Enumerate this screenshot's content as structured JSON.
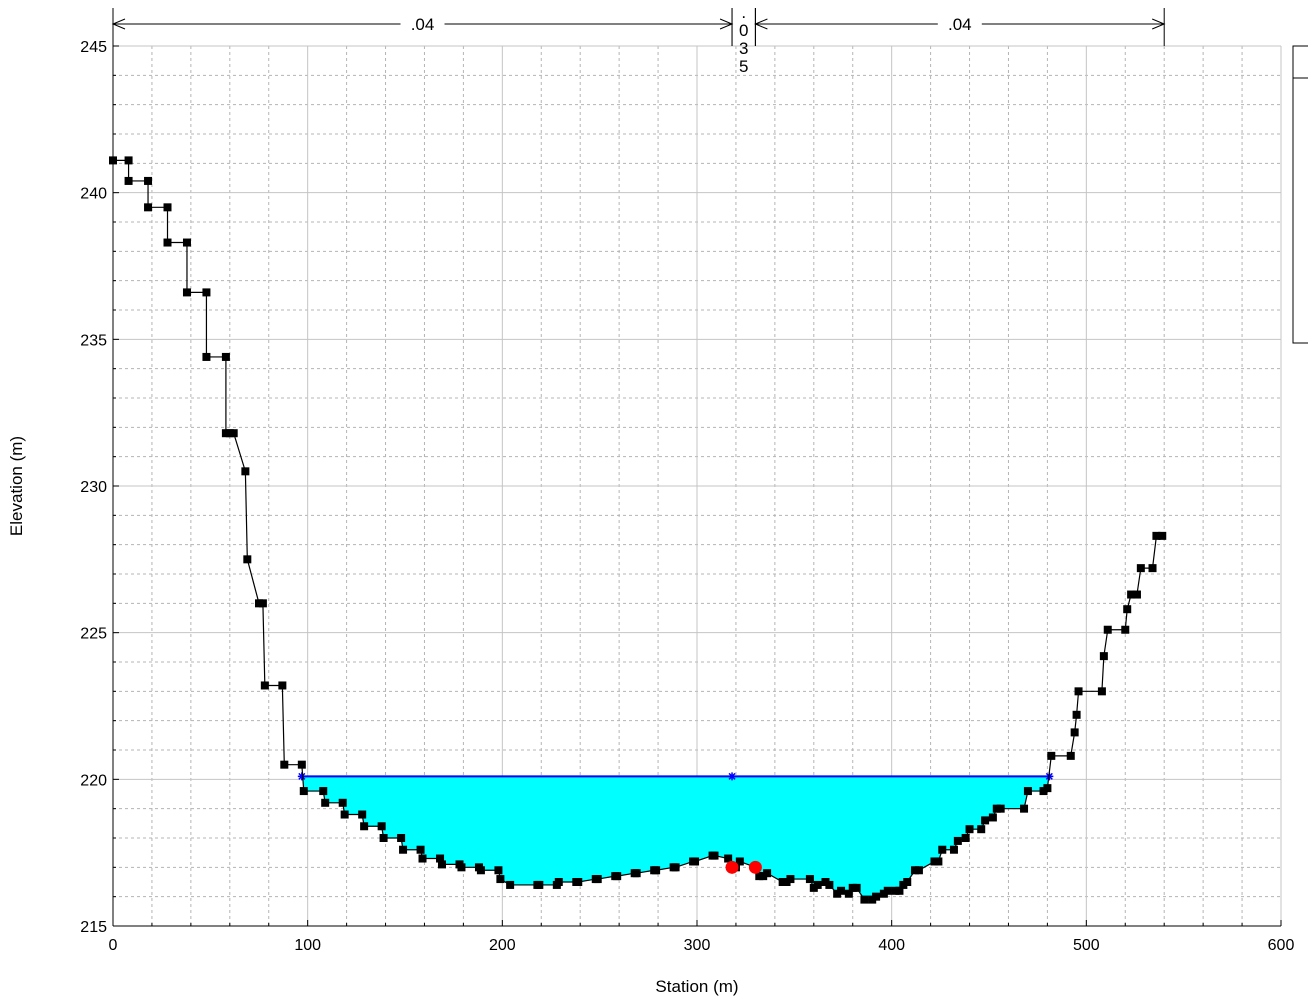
{
  "chart_data": {
    "type": "line",
    "xlabel": "Station (m)",
    "ylabel": "Elevation (m)",
    "xlim": [
      0,
      600
    ],
    "ylim": [
      215,
      245
    ],
    "x_ticks": [
      0,
      100,
      200,
      300,
      400,
      500,
      600
    ],
    "y_ticks": [
      215,
      220,
      225,
      230,
      235,
      240,
      245
    ],
    "x_minor_step": 20,
    "y_minor_step": 1,
    "grid": true,
    "colors": {
      "ground": "#000000",
      "water_fill": "#00ffff",
      "water_line": "#0000ff",
      "bank_station": "#ff0000"
    },
    "mannings_n": [
      {
        "label": ".04",
        "x_start": 0,
        "x_end": 318
      },
      {
        "label": ".035",
        "x_start": 318,
        "x_end": 330
      },
      {
        "label": ".04",
        "x_start": 330,
        "x_end": 540
      }
    ],
    "water_surface": {
      "elevation": 220.1,
      "x_left": 97,
      "x_right": 481,
      "markers_x": [
        97,
        318,
        481
      ]
    },
    "ground": {
      "x": [
        0,
        8,
        8,
        18,
        18,
        28,
        28,
        38,
        38,
        48,
        48,
        58,
        58,
        60,
        62,
        68,
        69,
        75,
        77,
        78,
        87,
        88,
        97,
        98,
        108,
        109,
        118,
        119,
        128,
        129,
        138,
        139,
        148,
        149,
        158,
        159,
        168,
        169,
        178,
        179,
        188,
        189,
        198,
        199,
        204,
        218,
        219,
        228,
        229,
        238,
        239,
        248,
        249,
        258,
        259,
        268,
        269,
        278,
        279,
        288,
        289,
        298,
        299,
        308,
        309,
        316,
        318,
        320,
        322,
        330,
        332,
        334,
        336,
        344,
        346,
        348,
        358,
        360,
        362,
        366,
        368,
        372,
        374,
        378,
        380,
        382,
        386,
        390,
        392,
        396,
        398,
        402,
        404,
        406,
        408,
        412,
        414,
        422,
        424,
        426,
        432,
        434,
        438,
        440,
        446,
        448,
        452,
        454,
        456,
        468,
        470,
        478,
        480,
        482,
        492,
        494,
        495,
        496,
        508,
        509,
        511,
        520,
        521,
        523,
        526,
        528,
        534,
        536,
        539
      ],
      "y": [
        241.1,
        241.1,
        240.4,
        240.4,
        239.5,
        239.5,
        238.3,
        238.3,
        236.6,
        236.6,
        234.4,
        234.4,
        231.8,
        231.8,
        231.8,
        230.5,
        227.5,
        226.0,
        226.0,
        223.2,
        223.2,
        220.5,
        220.5,
        219.6,
        219.6,
        219.2,
        219.2,
        218.8,
        218.8,
        218.4,
        218.4,
        218.0,
        218.0,
        217.6,
        217.6,
        217.3,
        217.3,
        217.1,
        217.1,
        217.0,
        217.0,
        216.9,
        216.9,
        216.6,
        216.4,
        216.4,
        216.4,
        216.4,
        216.5,
        216.5,
        216.5,
        216.6,
        216.6,
        216.7,
        216.7,
        216.8,
        216.8,
        216.9,
        216.9,
        217.0,
        217.0,
        217.2,
        217.2,
        217.4,
        217.4,
        217.3,
        217.0,
        217.0,
        217.2,
        217.0,
        216.7,
        216.7,
        216.8,
        216.5,
        216.5,
        216.6,
        216.6,
        216.3,
        216.4,
        216.5,
        216.4,
        216.1,
        216.2,
        216.1,
        216.3,
        216.3,
        215.9,
        215.9,
        216.0,
        216.1,
        216.2,
        216.2,
        216.2,
        216.4,
        216.5,
        216.9,
        216.9,
        217.2,
        217.2,
        217.6,
        217.6,
        217.9,
        218.0,
        218.3,
        218.3,
        218.6,
        218.7,
        219.0,
        219.0,
        219.0,
        219.6,
        219.6,
        219.7,
        220.8,
        220.8,
        221.6,
        222.2,
        223.0,
        223.0,
        224.2,
        225.1,
        225.1,
        225.8,
        226.3,
        226.3,
        227.2,
        227.2,
        228.3,
        228.3
      ],
      "markers_index": [
        0,
        1,
        2,
        3,
        4,
        5,
        6,
        7,
        8,
        9,
        10,
        11,
        12,
        13,
        14,
        15,
        16,
        17,
        18,
        19,
        20,
        21,
        22,
        23,
        24,
        25,
        26,
        27,
        28,
        29,
        30,
        31,
        32,
        33,
        34,
        35,
        36,
        37,
        38,
        39,
        40,
        41,
        42,
        43,
        44,
        45,
        46,
        47,
        48,
        49,
        50,
        51,
        52,
        53,
        54,
        55,
        56,
        57,
        58,
        59,
        60,
        61,
        62,
        63,
        64,
        65,
        66,
        67,
        68,
        69,
        70,
        71,
        72,
        73,
        74,
        75,
        76,
        77,
        78,
        79,
        80,
        81,
        82,
        83,
        84,
        85,
        86,
        87,
        88,
        89,
        90,
        91,
        92,
        93,
        94,
        95,
        96,
        97,
        98,
        99,
        100,
        101,
        102,
        103,
        104,
        105,
        106,
        107,
        108,
        109,
        110,
        111,
        112,
        113,
        114,
        115,
        116,
        117,
        118,
        119,
        120,
        121,
        122,
        123,
        124,
        125,
        126,
        127,
        128
      ]
    },
    "bank_stations": [
      {
        "x": 318,
        "y": 217.0
      },
      {
        "x": 330,
        "y": 217.0
      }
    ],
    "legend": {
      "placement": "top-right",
      "entries": []
    }
  }
}
